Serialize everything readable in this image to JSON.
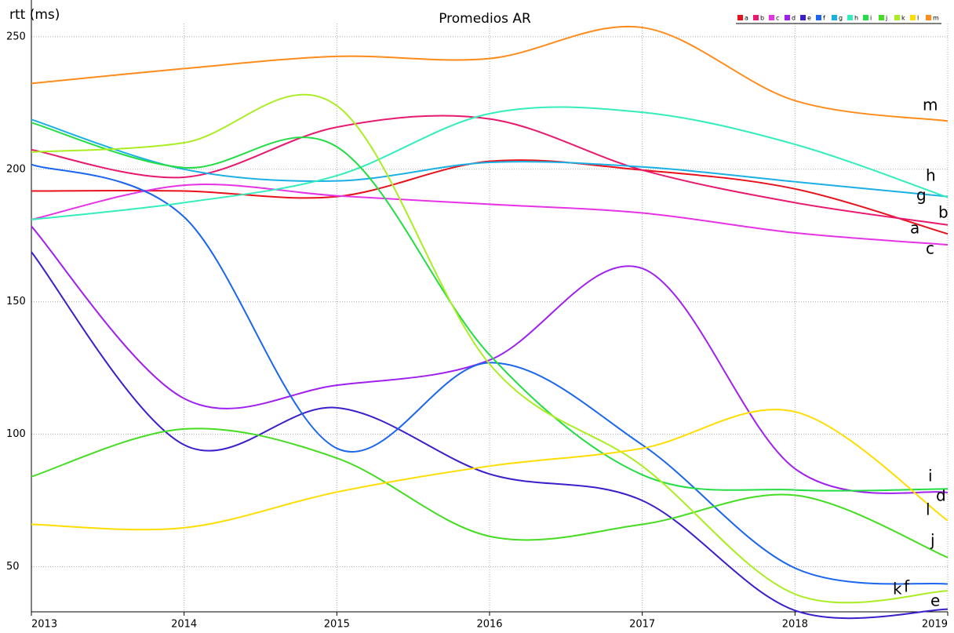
{
  "chart_data": {
    "type": "line",
    "title": "Promedios AR",
    "y_label": "rtt (ms)",
    "x": [
      2013,
      2014,
      2015,
      2016,
      2017,
      2018,
      2019
    ],
    "xlim": [
      2013,
      2019
    ],
    "xticks": [
      2013,
      2014,
      2015,
      2016,
      2017,
      2018,
      2019
    ],
    "ylim": [
      33,
      255
    ],
    "yticks": [
      50,
      100,
      150,
      200,
      250
    ],
    "grid": true,
    "legend": "upper right",
    "series": [
      {
        "name": "a",
        "color": "#e8101a",
        "values": [
          191.8,
          191.8,
          189.7,
          203,
          199.7,
          192.6,
          175.6
        ]
      },
      {
        "name": "b",
        "color": "#e8196e",
        "values": [
          207.4,
          197,
          215.9,
          219,
          199.7,
          187.4,
          179
        ]
      },
      {
        "name": "c",
        "color": "#e633e6",
        "values": [
          181,
          194,
          190,
          186.8,
          183.5,
          176,
          171.5
        ]
      },
      {
        "name": "d",
        "color": "#a020f0",
        "values": [
          178.5,
          113.5,
          118.5,
          128,
          162.6,
          87,
          78
        ]
      },
      {
        "name": "e",
        "color": "#3a1fcc",
        "values": [
          168.8,
          96,
          110,
          85,
          75,
          33.5,
          34
        ]
      },
      {
        "name": "f",
        "color": "#1a66ee",
        "values": [
          201.8,
          182,
          94.7,
          127,
          96,
          49.5,
          43.5
        ]
      },
      {
        "name": "g",
        "color": "#1ab0e6",
        "values": [
          218.8,
          200,
          195.6,
          202.6,
          200.9,
          195.3,
          189.7
        ]
      },
      {
        "name": "h",
        "color": "#33eebb",
        "values": [
          181,
          187.4,
          197.6,
          221,
          221.5,
          209.4,
          189.4
        ]
      },
      {
        "name": "i",
        "color": "#22dd44",
        "values": [
          217.6,
          200.6,
          208.5,
          130,
          84.7,
          79,
          79.4
        ]
      },
      {
        "name": "j",
        "color": "#44dd22",
        "values": [
          84,
          102,
          91,
          61.5,
          66,
          77,
          53.5
        ]
      },
      {
        "name": "k",
        "color": "#aaee22",
        "values": [
          206.5,
          210,
          224,
          126.5,
          88,
          39.7,
          40.9
        ]
      },
      {
        "name": "l",
        "color": "#ffdd00",
        "values": [
          66,
          64.7,
          78.2,
          88,
          94.7,
          108.5,
          67.4
        ]
      },
      {
        "name": "m",
        "color": "#ff8c1a",
        "values": [
          232.4,
          238,
          242.6,
          241.8,
          253.5,
          225.9,
          218.2
        ]
      }
    ]
  }
}
